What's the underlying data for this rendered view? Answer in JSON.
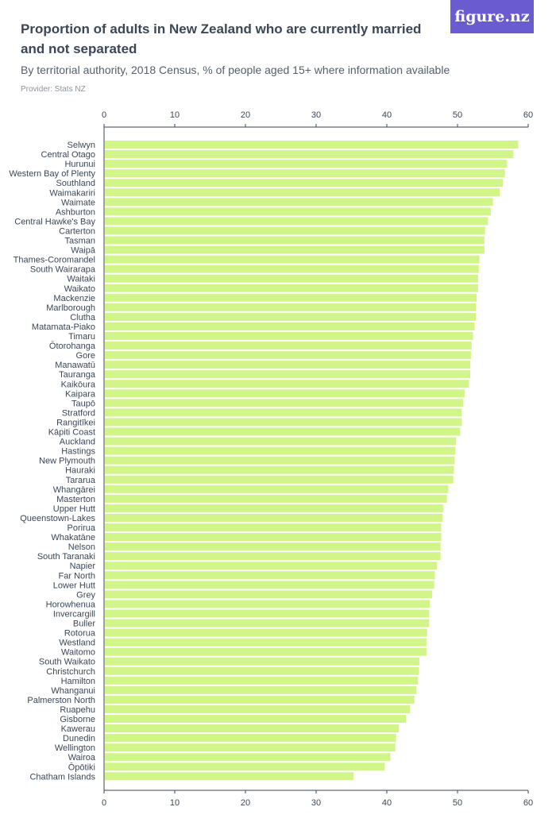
{
  "header": {
    "title": "Proportion of adults in New Zealand who are currently married and not separated",
    "subtitle": "By territorial authority, 2018 Census, % of people aged 15+ where information available",
    "provider": "Provider: Stats NZ",
    "logo": "figure.nz"
  },
  "colors": {
    "bar": "#d2f58a",
    "axis": "#3b4656",
    "logo_bg": "#6a5cd0"
  },
  "chart_data": {
    "type": "bar",
    "orientation": "horizontal",
    "title": "Proportion of adults in New Zealand who are currently married and not separated",
    "subtitle": "By territorial authority, 2018 Census, % of people aged 15+ where information available",
    "xlim": [
      0,
      60
    ],
    "xticks": [
      0,
      10,
      20,
      30,
      40,
      50,
      60
    ],
    "xtick_labels": [
      "0",
      "10",
      "20",
      "30",
      "40",
      "50",
      "60"
    ],
    "grid": false,
    "categories": [
      "Selwyn",
      "Central Otago",
      "Hurunui",
      "Western Bay of Plenty",
      "Southland",
      "Waimakariri",
      "Waimate",
      "Ashburton",
      "Central Hawke's Bay",
      "Carterton",
      "Tasman",
      "Waipā",
      "Thames-Coromandel",
      "South Wairarapa",
      "Waitaki",
      "Waikato",
      "Mackenzie",
      "Marlborough",
      "Clutha",
      "Matamata-Piako",
      "Timaru",
      "Ōtorohanga",
      "Gore",
      "Manawatū",
      "Tauranga",
      "Kaikōura",
      "Kaipara",
      "Taupō",
      "Stratford",
      "Rangitīkei",
      "Kāpiti Coast",
      "Auckland",
      "Hastings",
      "New Plymouth",
      "Hauraki",
      "Tararua",
      "Whangārei",
      "Masterton",
      "Upper Hutt",
      "Queenstown-Lakes",
      "Porirua",
      "Whakatāne",
      "Nelson",
      "South Taranaki",
      "Napier",
      "Far North",
      "Lower Hutt",
      "Grey",
      "Horowhenua",
      "Invercargill",
      "Buller",
      "Rotorua",
      "Westland",
      "Waitomo",
      "South Waikato",
      "Christchurch",
      "Hamilton",
      "Whanganui",
      "Palmerston North",
      "Ruapehu",
      "Gisborne",
      "Kawerau",
      "Dunedin",
      "Wellington",
      "Wairoa",
      "Ōpōtiki",
      "Chatham Islands"
    ],
    "values": [
      58.6,
      57.9,
      57.0,
      56.7,
      56.4,
      56.0,
      55.0,
      54.7,
      54.3,
      53.9,
      53.8,
      53.8,
      53.1,
      53.0,
      52.9,
      52.9,
      52.7,
      52.6,
      52.6,
      52.4,
      52.2,
      52.0,
      51.9,
      51.8,
      51.8,
      51.6,
      51.0,
      50.8,
      50.6,
      50.6,
      50.4,
      49.8,
      49.7,
      49.6,
      49.5,
      49.4,
      48.7,
      48.5,
      48.0,
      47.9,
      47.7,
      47.7,
      47.6,
      47.6,
      47.1,
      46.8,
      46.7,
      46.4,
      46.1,
      46.0,
      46.0,
      45.7,
      45.6,
      45.6,
      44.6,
      44.5,
      44.4,
      44.2,
      43.9,
      43.3,
      42.7,
      41.7,
      41.3,
      41.2,
      40.5,
      39.7,
      35.3
    ]
  }
}
